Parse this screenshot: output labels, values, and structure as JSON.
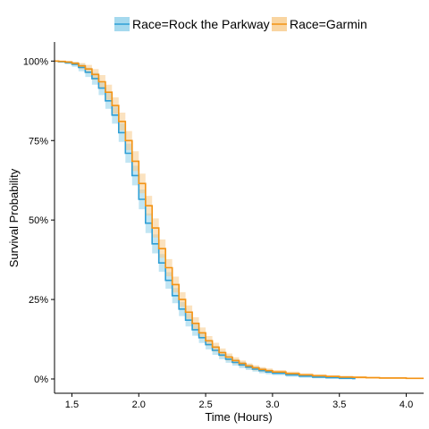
{
  "chart_data": {
    "type": "line",
    "subtype": "kaplan-meier-survival-step",
    "title": "",
    "xlabel": "Time (Hours)",
    "ylabel": "Survival Probability",
    "xlim": [
      1.37,
      4.13
    ],
    "ylim": [
      -0.045,
      1.06
    ],
    "x_ticks": [
      1.5,
      2.0,
      2.5,
      3.0,
      3.5,
      4.0
    ],
    "x_tick_labels": [
      "1.5",
      "2.0",
      "2.5",
      "3.0",
      "3.5",
      "4.0"
    ],
    "y_ticks": [
      0,
      0.25,
      0.5,
      0.75,
      1.0
    ],
    "y_tick_labels": [
      "0%",
      "25%",
      "50%",
      "75%",
      "100%"
    ],
    "grid": false,
    "legend_position": "top",
    "confidence_band": true,
    "series": [
      {
        "name": "Race=Rock the Parkway",
        "color": "#2E9FD6",
        "band_color": "#8ECFEA",
        "x": [
          1.37,
          1.4,
          1.45,
          1.5,
          1.55,
          1.6,
          1.65,
          1.7,
          1.75,
          1.8,
          1.85,
          1.9,
          1.95,
          2.0,
          2.05,
          2.1,
          2.15,
          2.2,
          2.25,
          2.3,
          2.35,
          2.4,
          2.45,
          2.5,
          2.55,
          2.6,
          2.65,
          2.7,
          2.75,
          2.8,
          2.85,
          2.9,
          2.95,
          3.0,
          3.1,
          3.2,
          3.3,
          3.4,
          3.5,
          3.6,
          3.62
        ],
        "y": [
          1.0,
          0.998,
          0.995,
          0.99,
          0.98,
          0.965,
          0.945,
          0.915,
          0.875,
          0.83,
          0.775,
          0.71,
          0.64,
          0.565,
          0.49,
          0.425,
          0.365,
          0.31,
          0.262,
          0.22,
          0.185,
          0.155,
          0.13,
          0.108,
          0.09,
          0.075,
          0.062,
          0.052,
          0.044,
          0.037,
          0.031,
          0.026,
          0.022,
          0.018,
          0.013,
          0.009,
          0.006,
          0.004,
          0.002,
          0.001,
          0.001
        ],
        "lower": [
          1.0,
          0.995,
          0.99,
          0.982,
          0.968,
          0.95,
          0.926,
          0.893,
          0.85,
          0.803,
          0.746,
          0.68,
          0.609,
          0.534,
          0.459,
          0.395,
          0.337,
          0.284,
          0.238,
          0.198,
          0.165,
          0.136,
          0.113,
          0.093,
          0.076,
          0.062,
          0.051,
          0.042,
          0.034,
          0.028,
          0.023,
          0.018,
          0.015,
          0.012,
          0.007,
          0.004,
          0.002,
          0.001,
          0.0,
          0.0,
          0.0
        ],
        "upper": [
          1.0,
          1.0,
          1.0,
          0.997,
          0.991,
          0.979,
          0.963,
          0.936,
          0.9,
          0.857,
          0.804,
          0.74,
          0.671,
          0.596,
          0.521,
          0.455,
          0.393,
          0.336,
          0.286,
          0.242,
          0.205,
          0.174,
          0.147,
          0.123,
          0.104,
          0.088,
          0.073,
          0.062,
          0.054,
          0.046,
          0.039,
          0.034,
          0.029,
          0.024,
          0.019,
          0.014,
          0.01,
          0.007,
          0.004,
          0.002,
          0.002
        ]
      },
      {
        "name": "Race=Garmin",
        "color": "#F39314",
        "band_color": "#F8CA8A",
        "x": [
          1.37,
          1.4,
          1.45,
          1.5,
          1.55,
          1.6,
          1.65,
          1.7,
          1.75,
          1.8,
          1.85,
          1.9,
          1.95,
          2.0,
          2.05,
          2.1,
          2.15,
          2.2,
          2.25,
          2.3,
          2.35,
          2.4,
          2.45,
          2.5,
          2.55,
          2.6,
          2.65,
          2.7,
          2.75,
          2.8,
          2.85,
          2.9,
          2.95,
          3.0,
          3.1,
          3.2,
          3.3,
          3.4,
          3.5,
          3.6,
          3.7,
          3.8,
          3.9,
          4.0,
          4.13
        ],
        "y": [
          1.0,
          0.999,
          0.997,
          0.993,
          0.985,
          0.975,
          0.958,
          0.935,
          0.902,
          0.86,
          0.81,
          0.75,
          0.685,
          0.615,
          0.545,
          0.475,
          0.41,
          0.35,
          0.297,
          0.25,
          0.21,
          0.175,
          0.145,
          0.12,
          0.1,
          0.083,
          0.069,
          0.058,
          0.049,
          0.041,
          0.035,
          0.03,
          0.026,
          0.022,
          0.017,
          0.013,
          0.01,
          0.008,
          0.006,
          0.005,
          0.004,
          0.003,
          0.003,
          0.002,
          0.002
        ],
        "lower": [
          1.0,
          0.997,
          0.993,
          0.987,
          0.976,
          0.962,
          0.941,
          0.914,
          0.878,
          0.834,
          0.782,
          0.72,
          0.654,
          0.584,
          0.514,
          0.445,
          0.381,
          0.323,
          0.272,
          0.227,
          0.189,
          0.156,
          0.128,
          0.105,
          0.086,
          0.07,
          0.058,
          0.048,
          0.04,
          0.033,
          0.027,
          0.023,
          0.019,
          0.016,
          0.011,
          0.008,
          0.005,
          0.004,
          0.002,
          0.001,
          0.001,
          0.0,
          0.0,
          0.0,
          0.0
        ],
        "upper": [
          1.0,
          1.0,
          1.0,
          0.998,
          0.994,
          0.988,
          0.975,
          0.956,
          0.926,
          0.886,
          0.838,
          0.78,
          0.716,
          0.646,
          0.576,
          0.505,
          0.439,
          0.377,
          0.322,
          0.273,
          0.231,
          0.194,
          0.162,
          0.135,
          0.114,
          0.096,
          0.08,
          0.068,
          0.058,
          0.049,
          0.043,
          0.037,
          0.033,
          0.028,
          0.023,
          0.018,
          0.015,
          0.012,
          0.01,
          0.009,
          0.007,
          0.006,
          0.006,
          0.004,
          0.004
        ]
      }
    ]
  }
}
